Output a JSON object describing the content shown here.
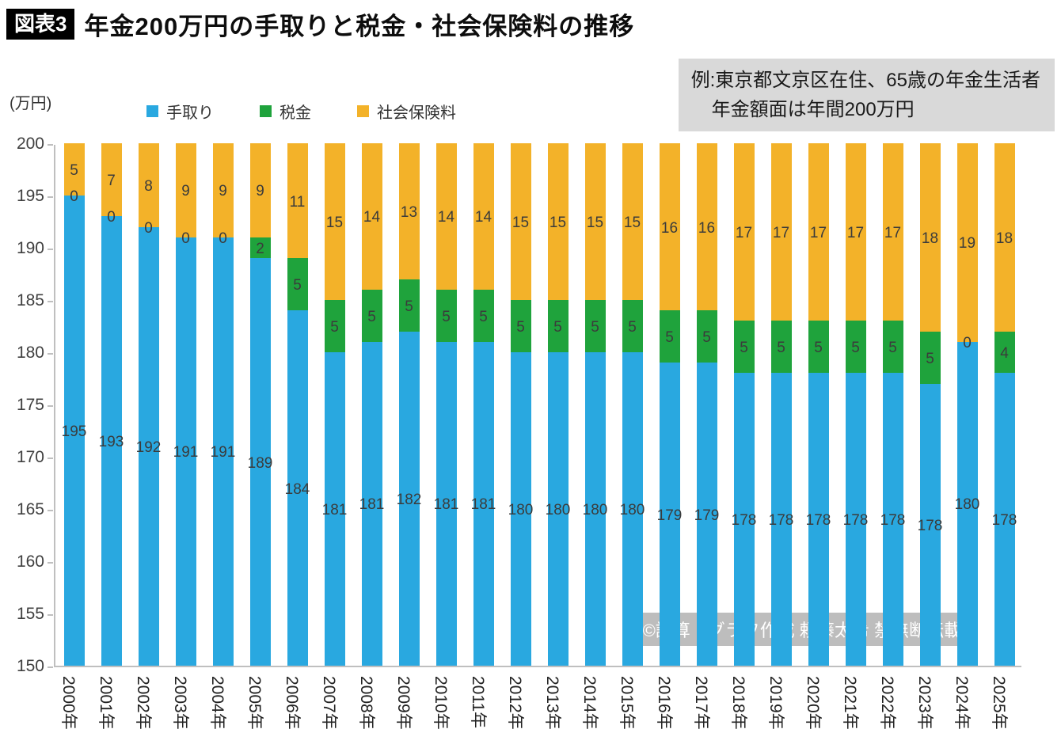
{
  "header": {
    "tag": "図表3",
    "title": "年金200万円の手取りと税金・社会保険料の推移"
  },
  "note": {
    "line1": "例:東京都文京区在住、65歳の年金生活者",
    "line2": "年金額面は年間200万円"
  },
  "axis_unit": "(万円)",
  "legend": [
    {
      "label": "手取り",
      "color": "#29A8E0"
    },
    {
      "label": "税金",
      "color": "#1FA33C"
    },
    {
      "label": "社会保険料",
      "color": "#F3B229"
    }
  ],
  "credit": "©試算・グラフ作成 頼藤太希 禁無断転載",
  "chart_data": {
    "type": "bar",
    "stacked": true,
    "title": "年金200万円の手取りと税金・社会保険料の推移",
    "ylabel": "(万円)",
    "ylim": [
      150,
      200
    ],
    "yticks": [
      150,
      155,
      160,
      165,
      170,
      175,
      180,
      185,
      190,
      195,
      200
    ],
    "total": 200,
    "grid": false,
    "legend_position": "top",
    "categories": [
      "2000年",
      "2001年",
      "2002年",
      "2003年",
      "2004年",
      "2005年",
      "2006年",
      "2007年",
      "2008年",
      "2009年",
      "2010年",
      "2011年",
      "2012年",
      "2013年",
      "2014年",
      "2015年",
      "2016年",
      "2017年",
      "2018年",
      "2019年",
      "2020年",
      "2021年",
      "2022年",
      "2023年",
      "2024年",
      "2025年"
    ],
    "series": [
      {
        "name": "手取り",
        "color": "#29A8E0",
        "values": [
          195,
          193,
          192,
          191,
          191,
          189,
          184,
          181,
          181,
          182,
          181,
          181,
          180,
          180,
          180,
          180,
          179,
          179,
          178,
          178,
          178,
          178,
          178,
          178,
          180,
          178
        ]
      },
      {
        "name": "税金",
        "color": "#1FA33C",
        "values": [
          0,
          0,
          0,
          0,
          0,
          2,
          5,
          5,
          5,
          5,
          5,
          5,
          5,
          5,
          5,
          5,
          5,
          5,
          5,
          5,
          5,
          5,
          5,
          5,
          0,
          4
        ]
      },
      {
        "name": "社会保険料",
        "color": "#F3B229",
        "values": [
          5,
          7,
          8,
          9,
          9,
          9,
          11,
          15,
          14,
          13,
          14,
          14,
          15,
          15,
          15,
          15,
          16,
          16,
          17,
          17,
          17,
          17,
          17,
          18,
          19,
          18
        ]
      }
    ]
  }
}
